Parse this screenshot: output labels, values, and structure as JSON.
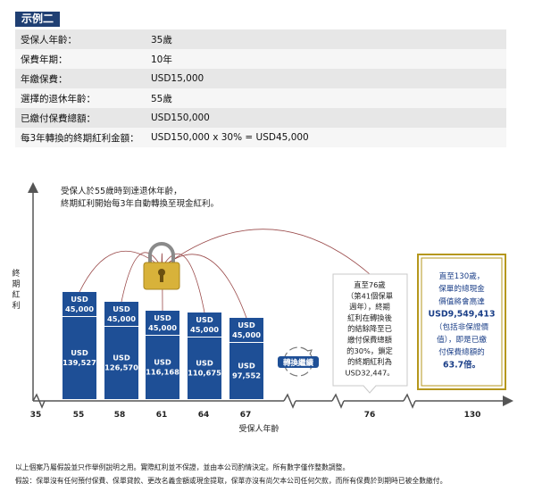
{
  "example_tag": "示例二",
  "table": [
    {
      "label": "受保人年齡：",
      "value": "35歲"
    },
    {
      "label": "保費年期：",
      "value": "10年"
    },
    {
      "label": "年繳保費：",
      "value": "USD15,000"
    },
    {
      "label": "選擇的退休年齡：",
      "value": "55歲"
    },
    {
      "label": "已繳付保費總額：",
      "value": "USD150,000"
    },
    {
      "label": "每3年轉換的終期紅利金額：",
      "value": "USD150,000 x 30% = USD45,000"
    }
  ],
  "chart": {
    "y_axis_label": [
      "終",
      "期",
      "紅",
      "利"
    ],
    "note_lines": [
      "受保人於55歲時到達退休年齡，",
      "終期紅利開始每3年自動轉換至現金紅利。"
    ],
    "x_axis_label": "受保人年齡",
    "x_ticks": [
      "35",
      "55",
      "58",
      "61",
      "64",
      "67",
      "76",
      "130"
    ],
    "bars": [
      {
        "age": "55",
        "top_prefix": "USD",
        "top_value": "45,000",
        "bottom_prefix": "USD",
        "bottom_value": "139,527"
      },
      {
        "age": "58",
        "top_prefix": "USD",
        "top_value": "45,000",
        "bottom_prefix": "USD",
        "bottom_value": "126,570"
      },
      {
        "age": "61",
        "top_prefix": "USD",
        "top_value": "45,000",
        "bottom_prefix": "USD",
        "bottom_value": "116,168"
      },
      {
        "age": "64",
        "top_prefix": "USD",
        "top_value": "45,000",
        "bottom_prefix": "USD",
        "bottom_value": "110,675"
      },
      {
        "age": "67",
        "top_prefix": "USD",
        "top_value": "45,000",
        "bottom_prefix": "USD",
        "bottom_value": "97,552"
      }
    ],
    "conversion_label": "轉換繼續",
    "callout_76": [
      "直至76歲",
      "（第41個保單",
      "週年），終期",
      "紅利在轉換後",
      "的結餘降至已",
      "繳付保費總額",
      "的30%，鎖定",
      "的終期紅利為",
      "USD32,447。"
    ],
    "callout_130": [
      "直至130歲，",
      "保單的總現金",
      "價值將會高達",
      "USD9,549,413",
      "（包括非保證價",
      "值），即是已繳",
      "付保費總額的",
      "63.7倍。"
    ]
  },
  "footnotes": [
    "以上個案乃屬假設並只作舉例說明之用。實際紅利並不保證，並由本公司酌情決定。所有數字僅作整數調整。",
    "假設：保單沒有任何預付保費、保單貸款、更改名義金額或現金提取，保單亦沒有尚欠本公司任何欠款，而所有保費於到期時已被全數繳付。"
  ],
  "colors": {
    "bar_blue": "#1e4f96",
    "tag_navy": "#1f3f73",
    "highlight_text": "#1b3f88",
    "gold_border": "#b5971d",
    "lock_gold": "#d8b23a",
    "axis": "#555555"
  }
}
